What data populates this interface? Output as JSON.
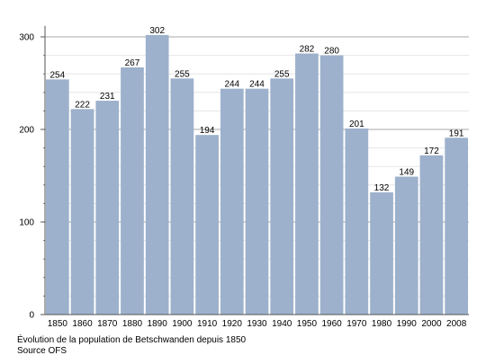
{
  "chart_data": {
    "type": "bar",
    "categories": [
      "1850",
      "1860",
      "1870",
      "1880",
      "1890",
      "1900",
      "1910",
      "1920",
      "1930",
      "1940",
      "1950",
      "1960",
      "1970",
      "1980",
      "1990",
      "2000",
      "2008"
    ],
    "values": [
      254,
      222,
      231,
      267,
      302,
      255,
      194,
      244,
      244,
      255,
      282,
      280,
      201,
      132,
      149,
      172,
      191
    ],
    "data_labels": [
      "254",
      "222",
      "231",
      "267",
      "302",
      "255",
      "194",
      "244",
      "244",
      "255",
      "282",
      "280",
      "201",
      "132",
      "149",
      "172",
      "191"
    ],
    "yticks": [
      "0",
      "100",
      "200",
      "300"
    ],
    "ylim": [
      0,
      310
    ],
    "grid": true,
    "bar_color": "#9db1cc",
    "caption": "Évolution de la population de Betschwanden depuis 1850",
    "source": "Source OFS"
  }
}
